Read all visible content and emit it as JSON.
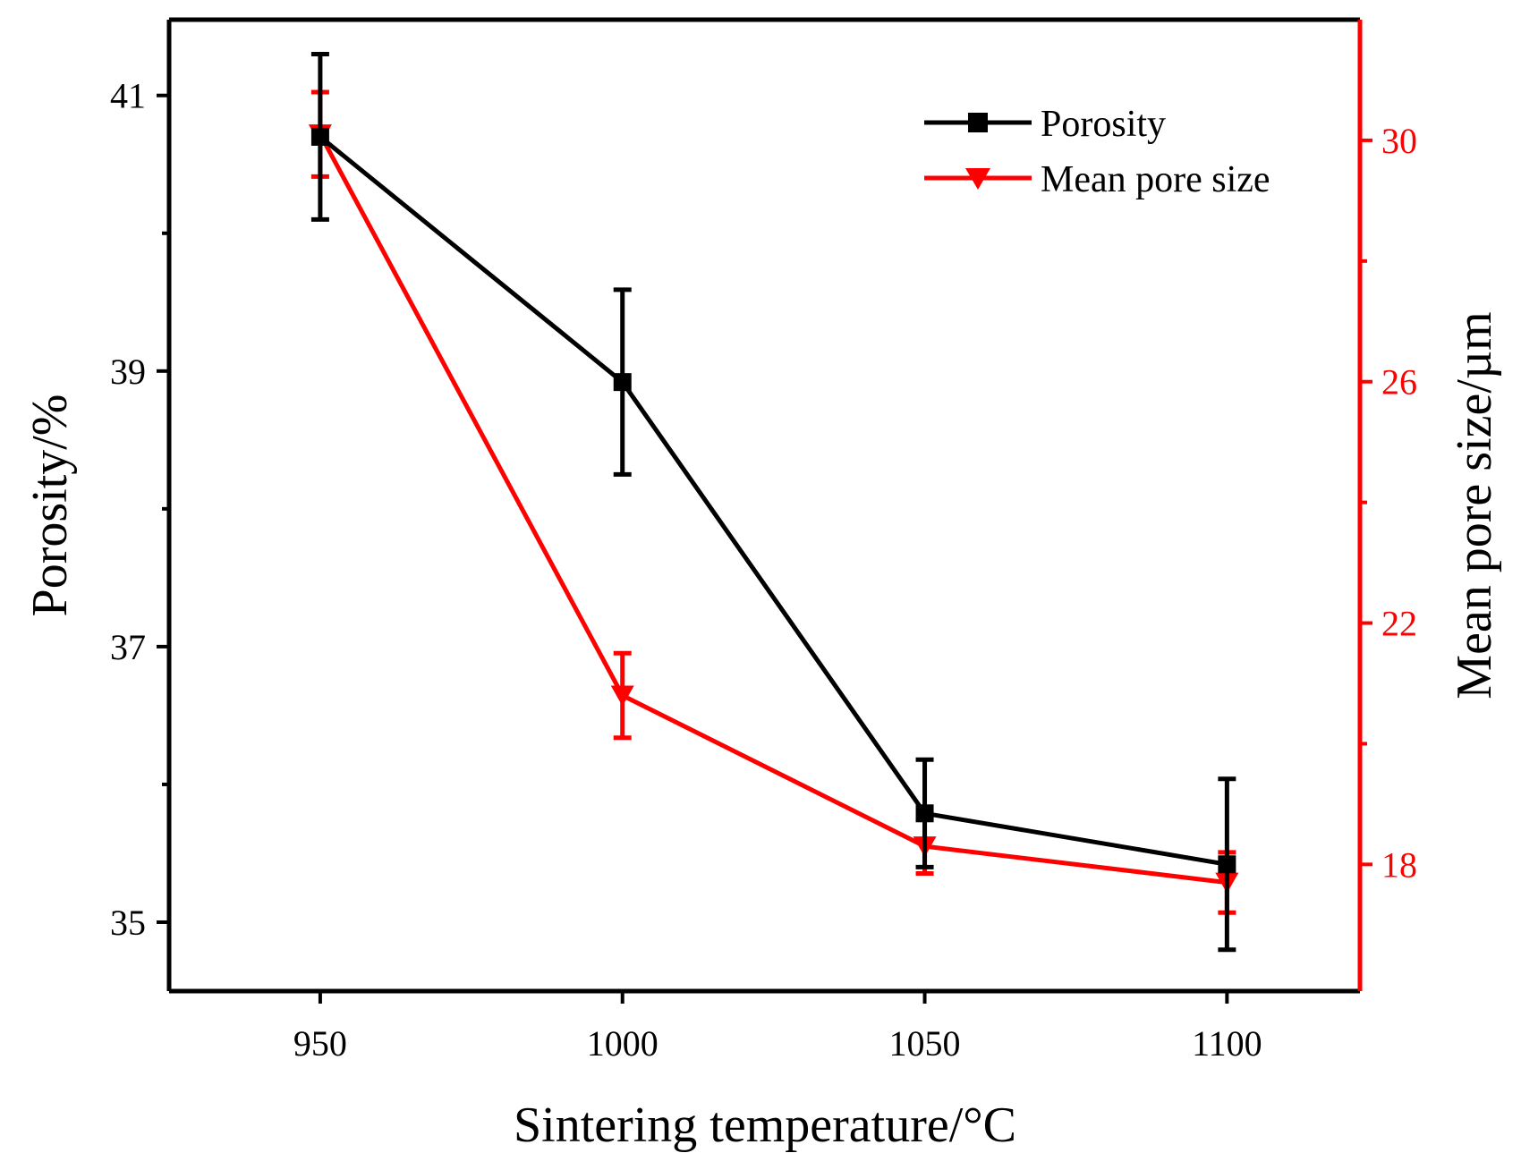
{
  "chart_data": {
    "type": "line",
    "xlabel": "Sintering temperature/°C",
    "ylabel_left": "Porosity/%",
    "ylabel_right": "Mean pore size/µm",
    "x": [
      950,
      1000,
      1050,
      1100
    ],
    "x_ticks": [
      "950",
      "1000",
      "1050",
      "1100"
    ],
    "xlim": [
      925,
      1122
    ],
    "ylim_left": [
      34.5,
      41.55
    ],
    "ylim_right": [
      15.9,
      32.0
    ],
    "y_ticks_left": [
      "35",
      "37",
      "39",
      "41"
    ],
    "y_ticks_right": [
      "18",
      "22",
      "26",
      "30"
    ],
    "series": [
      {
        "name": "Porosity",
        "axis": "left",
        "color": "#000000",
        "marker": "square",
        "values": [
          40.7,
          38.92,
          35.79,
          35.42
        ],
        "error": [
          0.6,
          0.67,
          0.39,
          0.62
        ]
      },
      {
        "name": "Mean pore size",
        "axis": "right",
        "color": "#ff0000",
        "marker": "triangle-down",
        "values": [
          30.1,
          20.8,
          18.3,
          17.7
        ],
        "error": [
          0.7,
          0.7,
          0.45,
          0.5
        ]
      }
    ],
    "legend": {
      "position": "top-right",
      "entries": [
        "Porosity",
        "Mean pore size"
      ]
    }
  }
}
